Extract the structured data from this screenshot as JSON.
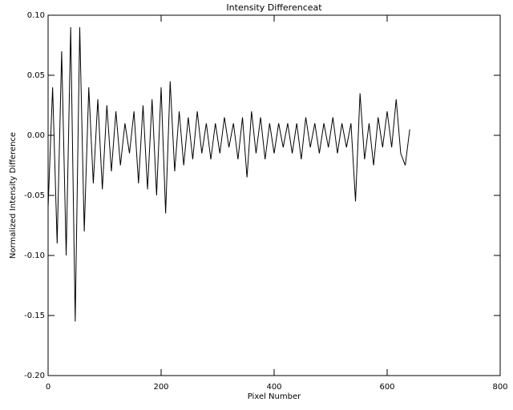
{
  "chart_data": {
    "type": "line",
    "title": "Intensity Differenceat",
    "x_label": "Pixel Number",
    "y_label": "Normalized Intensity Difference",
    "x": [
      0,
      8,
      16,
      24,
      32,
      40,
      48,
      56,
      64,
      72,
      80,
      88,
      96,
      104,
      112,
      120,
      128,
      136,
      144,
      152,
      160,
      168,
      176,
      184,
      192,
      200,
      208,
      216,
      224,
      232,
      240,
      248,
      256,
      264,
      272,
      280,
      288,
      296,
      304,
      312,
      320,
      328,
      336,
      344,
      352,
      360,
      368,
      376,
      384,
      392,
      400,
      408,
      416,
      424,
      432,
      440,
      448,
      456,
      464,
      472,
      480,
      488,
      496,
      504,
      512,
      520,
      528,
      536,
      544,
      552,
      560,
      568,
      576,
      584,
      592,
      600,
      608,
      616,
      624,
      632,
      640
    ],
    "values": [
      -0.06,
      0.04,
      -0.09,
      0.07,
      -0.1,
      0.09,
      -0.155,
      0.09,
      -0.08,
      0.04,
      -0.04,
      0.03,
      -0.045,
      0.025,
      -0.03,
      0.02,
      -0.025,
      0.01,
      -0.015,
      0.02,
      -0.04,
      0.025,
      -0.045,
      0.03,
      -0.05,
      0.04,
      -0.065,
      0.045,
      -0.03,
      0.02,
      -0.025,
      0.015,
      -0.02,
      0.02,
      -0.015,
      0.01,
      -0.02,
      0.01,
      -0.015,
      0.015,
      -0.01,
      0.01,
      -0.02,
      0.015,
      -0.035,
      0.02,
      -0.015,
      0.015,
      -0.02,
      0.01,
      -0.015,
      0.01,
      -0.01,
      0.01,
      -0.015,
      0.01,
      -0.02,
      0.015,
      -0.01,
      0.01,
      -0.015,
      0.01,
      -0.01,
      0.015,
      -0.015,
      0.01,
      -0.01,
      0.01,
      -0.055,
      0.035,
      -0.02,
      0.01,
      -0.025,
      0.015,
      -0.01,
      0.02,
      -0.01,
      0.03,
      -0.015,
      -0.025,
      0.005
    ],
    "color": "#000000",
    "xlim": [
      0,
      800
    ],
    "xticks": [
      0,
      200,
      400,
      600,
      800
    ],
    "ylim": [
      -0.2,
      0.1
    ],
    "yticks": [
      {
        "value": -0.2,
        "label": "-0.20"
      },
      {
        "value": -0.15,
        "label": "-0.15"
      },
      {
        "value": -0.1,
        "label": "-0.10"
      },
      {
        "value": -0.05,
        "label": "-0.05"
      },
      {
        "value": 0,
        "label": "0.00"
      },
      {
        "value": 0.05,
        "label": "0.05"
      },
      {
        "value": 0.1,
        "label": "0.10"
      }
    ]
  }
}
